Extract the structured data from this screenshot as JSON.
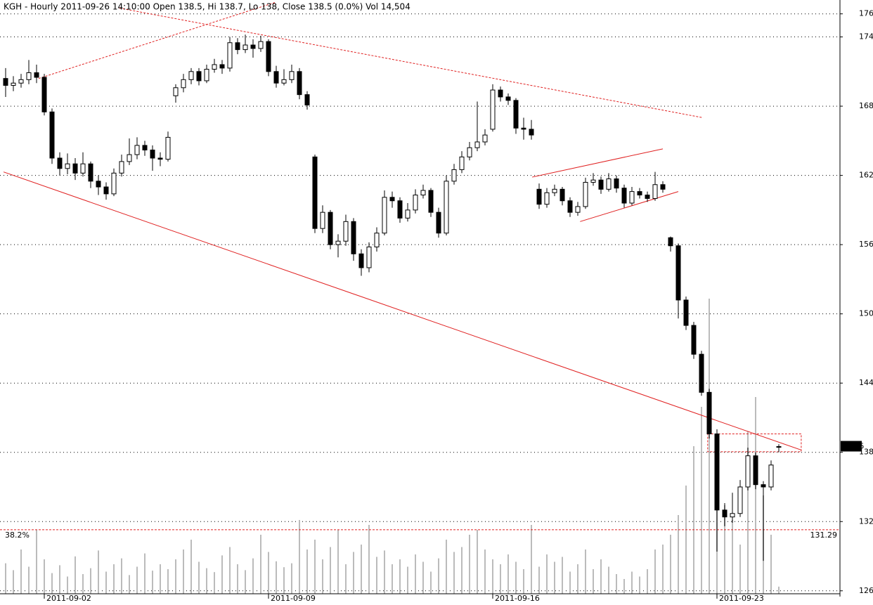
{
  "chart_data": {
    "type": "candlestick",
    "title": "KGH - Hourly 2011-09-26 14:10:00 Open 138.5, Hi 138.7, Lo 138, Close 138.5 (0.0%) Vol 14,504",
    "categories": [
      null,
      null,
      null,
      null,
      null,
      "2011-09-02",
      null,
      null,
      null,
      null,
      null,
      null,
      null,
      null,
      null,
      null,
      null,
      null,
      null,
      null,
      null,
      null,
      null,
      null,
      null,
      null,
      null,
      null,
      null,
      null,
      null,
      null,
      null,
      null,
      "2011-09-09",
      null,
      null,
      null,
      null,
      null,
      null,
      null,
      null,
      null,
      null,
      null,
      null,
      null,
      null,
      null,
      null,
      null,
      null,
      null,
      null,
      null,
      null,
      null,
      null,
      null,
      null,
      null,
      null,
      "2011-09-16",
      null,
      null,
      null,
      null,
      null,
      null,
      null,
      null,
      null,
      null,
      null,
      null,
      null,
      null,
      null,
      null,
      null,
      null,
      null,
      null,
      null,
      null,
      null,
      null,
      null,
      null,
      null,
      null,
      "2011-09-23",
      null,
      null,
      null,
      null,
      null,
      null,
      null,
      null
    ],
    "ohlc": [
      [
        170.4,
        171.3,
        168.8,
        169.8
      ],
      [
        169.8,
        170.6,
        169.3,
        170.0
      ],
      [
        170.0,
        170.8,
        169.6,
        170.3
      ],
      [
        170.3,
        172.0,
        169.9,
        170.9
      ],
      [
        170.9,
        171.6,
        170.0,
        170.5
      ],
      [
        170.5,
        170.8,
        167.2,
        167.5
      ],
      [
        167.5,
        167.8,
        163.0,
        163.5
      ],
      [
        163.5,
        164.0,
        162.0,
        162.6
      ],
      [
        162.6,
        163.9,
        162.1,
        163.0
      ],
      [
        163.0,
        163.5,
        161.6,
        162.2
      ],
      [
        162.2,
        164.0,
        161.9,
        163.0
      ],
      [
        163.0,
        163.2,
        160.9,
        161.5
      ],
      [
        161.5,
        162.0,
        160.3,
        161.0
      ],
      [
        161.0,
        161.4,
        159.9,
        160.4
      ],
      [
        160.4,
        162.6,
        160.2,
        162.2
      ],
      [
        162.2,
        163.8,
        161.9,
        163.2
      ],
      [
        163.2,
        165.2,
        162.9,
        163.8
      ],
      [
        163.8,
        165.3,
        163.4,
        164.6
      ],
      [
        164.6,
        165.0,
        163.7,
        164.2
      ],
      [
        164.2,
        164.6,
        162.4,
        163.5
      ],
      [
        163.5,
        164.0,
        162.8,
        163.4
      ],
      [
        163.4,
        165.8,
        163.2,
        165.3
      ],
      [
        168.9,
        169.9,
        168.3,
        169.6
      ],
      [
        169.6,
        170.8,
        169.2,
        170.3
      ],
      [
        170.3,
        171.3,
        169.9,
        171.0
      ],
      [
        171.0,
        171.3,
        169.8,
        170.2
      ],
      [
        170.2,
        171.6,
        170.0,
        171.2
      ],
      [
        171.2,
        172.1,
        170.9,
        171.6
      ],
      [
        171.6,
        172.0,
        170.8,
        171.3
      ],
      [
        171.3,
        174.0,
        171.0,
        173.5
      ],
      [
        173.5,
        173.9,
        172.5,
        172.9
      ],
      [
        172.9,
        174.2,
        172.6,
        173.3
      ],
      [
        173.3,
        173.8,
        172.2,
        173.0
      ],
      [
        173.0,
        174.1,
        172.7,
        173.6
      ],
      [
        173.6,
        173.8,
        170.6,
        171.0
      ],
      [
        171.0,
        171.5,
        169.6,
        170.0
      ],
      [
        170.0,
        171.2,
        169.8,
        170.3
      ],
      [
        170.3,
        171.6,
        170.0,
        171.0
      ],
      [
        171.0,
        171.3,
        168.6,
        169.0
      ],
      [
        169.0,
        169.3,
        167.7,
        168.1
      ],
      [
        163.6,
        163.8,
        157.0,
        157.4
      ],
      [
        157.4,
        159.4,
        157.0,
        158.8
      ],
      [
        158.8,
        159.0,
        155.6,
        156.0
      ],
      [
        156.0,
        156.9,
        154.9,
        156.3
      ],
      [
        156.3,
        158.6,
        155.9,
        158.0
      ],
      [
        158.0,
        158.3,
        154.6,
        155.2
      ],
      [
        155.2,
        155.6,
        153.3,
        154.0
      ],
      [
        154.0,
        156.2,
        153.6,
        155.8
      ],
      [
        155.8,
        157.5,
        155.4,
        157.0
      ],
      [
        157.0,
        160.7,
        156.8,
        160.1
      ],
      [
        160.1,
        160.6,
        159.2,
        159.8
      ],
      [
        159.8,
        160.1,
        157.9,
        158.3
      ],
      [
        158.3,
        159.6,
        158.0,
        159.0
      ],
      [
        159.0,
        160.8,
        158.7,
        160.3
      ],
      [
        160.3,
        161.2,
        160.0,
        160.7
      ],
      [
        160.7,
        160.9,
        158.4,
        158.8
      ],
      [
        158.8,
        159.2,
        156.6,
        157.0
      ],
      [
        157.0,
        162.0,
        156.8,
        161.5
      ],
      [
        161.5,
        163.0,
        161.2,
        162.5
      ],
      [
        162.5,
        164.1,
        162.2,
        163.6
      ],
      [
        163.6,
        164.9,
        163.3,
        164.4
      ],
      [
        164.4,
        168.4,
        164.1,
        164.9
      ],
      [
        164.9,
        166.0,
        164.6,
        165.5
      ],
      [
        166.0,
        169.9,
        165.8,
        169.4
      ],
      [
        169.4,
        169.7,
        168.4,
        168.8
      ],
      [
        168.8,
        169.1,
        168.1,
        168.5
      ],
      [
        168.5,
        168.7,
        165.6,
        166.1
      ],
      [
        166.1,
        167.0,
        165.1,
        166.0
      ],
      [
        166.0,
        166.8,
        165.1,
        165.5
      ],
      [
        160.8,
        161.3,
        159.1,
        159.5
      ],
      [
        159.5,
        160.9,
        159.2,
        160.5
      ],
      [
        160.5,
        161.2,
        160.2,
        160.8
      ],
      [
        160.8,
        161.0,
        159.4,
        159.8
      ],
      [
        159.8,
        160.1,
        158.4,
        158.8
      ],
      [
        158.8,
        159.7,
        158.5,
        159.3
      ],
      [
        159.3,
        161.8,
        159.1,
        161.4
      ],
      [
        161.4,
        162.2,
        161.1,
        161.6
      ],
      [
        161.6,
        161.9,
        160.4,
        160.8
      ],
      [
        160.8,
        162.2,
        160.6,
        161.7
      ],
      [
        161.7,
        162.0,
        160.5,
        160.9
      ],
      [
        160.9,
        161.2,
        159.2,
        159.6
      ],
      [
        159.6,
        161.0,
        159.4,
        160.6
      ],
      [
        160.6,
        160.9,
        160.0,
        160.3
      ],
      [
        160.3,
        160.6,
        159.7,
        160.0
      ],
      [
        160.0,
        162.3,
        159.8,
        161.2
      ],
      [
        161.2,
        161.5,
        160.5,
        160.8
      ],
      [
        156.6,
        156.7,
        155.4,
        155.9
      ],
      [
        155.9,
        156.1,
        149.6,
        151.2
      ],
      [
        151.2,
        151.5,
        148.6,
        149.0
      ],
      [
        149.0,
        149.3,
        146.1,
        146.5
      ],
      [
        146.5,
        146.8,
        142.9,
        143.2
      ],
      [
        143.2,
        143.5,
        139.2,
        139.6
      ],
      [
        139.6,
        140.0,
        129.4,
        133.0
      ],
      [
        133.0,
        133.6,
        131.6,
        132.4
      ],
      [
        132.4,
        134.5,
        131.9,
        132.7
      ],
      [
        132.7,
        135.6,
        132.4,
        135.0
      ],
      [
        135.0,
        138.4,
        134.7,
        137.7
      ],
      [
        137.7,
        138.0,
        134.8,
        135.2
      ],
      [
        135.2,
        135.5,
        128.6,
        135.0
      ],
      [
        135.0,
        137.3,
        134.7,
        136.9
      ],
      [
        138.5,
        138.7,
        138.0,
        138.5
      ]
    ],
    "volume": [
      62000,
      48000,
      90000,
      55000,
      130000,
      70000,
      42000,
      58000,
      35000,
      76000,
      40000,
      52000,
      88000,
      45000,
      60000,
      72000,
      38000,
      55000,
      82000,
      47000,
      60000,
      50000,
      70000,
      90000,
      110000,
      65000,
      52000,
      44000,
      78000,
      95000,
      60000,
      48000,
      72000,
      120000,
      85000,
      66000,
      54000,
      62000,
      150000,
      90000,
      110000,
      70000,
      95000,
      130000,
      60000,
      85000,
      100000,
      140000,
      75000,
      88000,
      60000,
      70000,
      55000,
      80000,
      65000,
      45000,
      72000,
      110000,
      85000,
      95000,
      120000,
      130000,
      90000,
      70000,
      60000,
      80000,
      65000,
      50000,
      140000,
      55000,
      80000,
      65000,
      75000,
      45000,
      60000,
      90000,
      50000,
      70000,
      55000,
      40000,
      30000,
      45000,
      35000,
      50000,
      90000,
      100000,
      120000,
      160000,
      220000,
      300000,
      380000,
      600000,
      260000,
      180000,
      150000,
      100000,
      330000,
      400000,
      200000,
      120000,
      14504
    ],
    "ylim": [
      125.5,
      177.2
    ],
    "yticks": [
      126,
      132,
      138,
      144,
      150,
      156,
      162,
      168,
      174,
      176
    ],
    "grid": true,
    "up_color": "#ffffff",
    "down_color": "#000000",
    "volume_color": "#bbbbbb",
    "line_color": "#e02020",
    "trendlines": [
      {
        "x": [
          -0.27,
          102.9
        ],
        "y": [
          162.3,
          138.2
        ],
        "style": "solid"
      },
      {
        "x": [
          4.27,
          34.9
        ],
        "y": [
          170.4,
          177.0
        ],
        "style": "dashed"
      },
      {
        "x": [
          14.7,
          90.2
        ],
        "y": [
          176.5,
          167.0
        ],
        "style": "dashed"
      },
      {
        "x": [
          68.1,
          85.0
        ],
        "y": [
          161.85,
          164.3
        ],
        "style": "solid"
      },
      {
        "x": [
          74.3,
          87.0
        ],
        "y": [
          158.0,
          160.6
        ],
        "style": "solid"
      }
    ],
    "zones": [
      {
        "x": [
          90.8,
          102.9
        ],
        "y": [
          138.05,
          139.6
        ]
      }
    ],
    "hlines": [
      {
        "value": 131.29,
        "left_label": "38.2%"
      }
    ]
  }
}
